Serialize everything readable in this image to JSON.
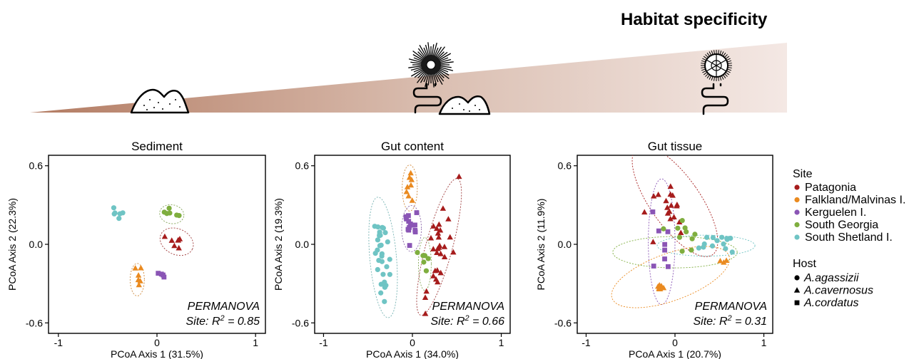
{
  "header": {
    "title": "Habitat specificity"
  },
  "colors": {
    "Patagonia": "#a61c1c",
    "Falkland/Malvinas I.": "#ea8a1f",
    "Kerguelen I.": "#8a55b5",
    "South Georgia": "#7fae3f",
    "South Shetland I.": "#6fc4c4"
  },
  "legend": {
    "site_title": "Site",
    "sites": [
      "Patagonia",
      "Falkland/Malvinas I.",
      "Kerguelen I.",
      "South Georgia",
      "South Shetland I."
    ],
    "host_title": "Host",
    "hosts": [
      {
        "name": "A.agassizii",
        "shape": "circle"
      },
      {
        "name": "A.cavernosus",
        "shape": "triangle"
      },
      {
        "name": "A.cordatus",
        "shape": "square"
      }
    ]
  },
  "icons": [
    "sediment-mound-icon",
    "sea-urchin-icon",
    "gut-icon",
    "urchin-test-icon"
  ],
  "chart_data": [
    {
      "type": "scatter",
      "title": "Sediment",
      "xlabel": "PCoA Axis 1 (31.5%)",
      "ylabel": "PCoA Axis 2 (22.3%)",
      "xlim": [
        -1.1,
        1.1
      ],
      "ylim": [
        -0.68,
        0.68
      ],
      "xticks": [
        -1,
        0,
        1
      ],
      "yticks": [
        0.6,
        0.0,
        -0.6
      ],
      "xtick_labels": [
        "-1",
        "0",
        "1"
      ],
      "ytick_labels": [
        "0.6",
        "0.0",
        "-0.6"
      ],
      "annotation": "PERMANOVA",
      "stat_prefix": "Site: R",
      "stat_sup": "2",
      "stat_suffix": " = 0.85",
      "groups": [
        {
          "site": "South Shetland I.",
          "host": "circle",
          "cx": -0.4,
          "cy": 0.23,
          "sx": 0.03,
          "sy": 0.03,
          "n": 6,
          "rot": 0,
          "ellipse": false
        },
        {
          "site": "South Georgia",
          "host": "circle",
          "cx": 0.15,
          "cy": 0.23,
          "sx": 0.04,
          "sy": 0.02,
          "n": 6,
          "rot": -10,
          "ellipse": true
        },
        {
          "site": "Patagonia",
          "host": "triangle",
          "cx": 0.2,
          "cy": 0.02,
          "sx": 0.06,
          "sy": 0.03,
          "n": 7,
          "rot": -25,
          "ellipse": true
        },
        {
          "site": "Kerguelen I.",
          "host": "square",
          "cx": 0.04,
          "cy": -0.22,
          "sx": 0.02,
          "sy": 0.015,
          "n": 4,
          "rot": 0,
          "ellipse": false
        },
        {
          "site": "Falkland/Malvinas I.",
          "host": "triangle",
          "cx": -0.2,
          "cy": -0.27,
          "sx": 0.02,
          "sy": 0.04,
          "n": 6,
          "rot": 0,
          "ellipse": true
        }
      ]
    },
    {
      "type": "scatter",
      "title": "Gut content",
      "xlabel": "PCoA Axis 1 (34.0%)",
      "ylabel": "PCoA Axis 2 (19.3%)",
      "xlim": [
        -1.1,
        1.1
      ],
      "ylim": [
        -0.68,
        0.68
      ],
      "xticks": [
        -1,
        0,
        1
      ],
      "yticks": [
        0.6,
        0.0,
        -0.6
      ],
      "xtick_labels": [
        "-1",
        "0",
        "1"
      ],
      "ytick_labels": [
        "0.6",
        "0.0",
        "-0.6"
      ],
      "annotation": "PERMANOVA",
      "stat_prefix": "Site: R",
      "stat_sup": "2",
      "stat_suffix": " = 0.66",
      "groups": [
        {
          "site": "Falkland/Malvinas I.",
          "host": "triangle",
          "cx": -0.03,
          "cy": 0.43,
          "sx": 0.025,
          "sy": 0.06,
          "n": 8,
          "rot": 0,
          "ellipse": true
        },
        {
          "site": "Kerguelen I.",
          "host": "square",
          "cx": -0.01,
          "cy": 0.12,
          "sx": 0.035,
          "sy": 0.06,
          "n": 14,
          "rot": 0,
          "ellipse": true
        },
        {
          "site": "South Shetland I.",
          "host": "circle",
          "cx": -0.33,
          "cy": -0.1,
          "sx": 0.05,
          "sy": 0.17,
          "n": 30,
          "rot": 5,
          "ellipse": true
        },
        {
          "site": "South Georgia",
          "host": "circle",
          "cx": 0.14,
          "cy": -0.15,
          "sx": 0.02,
          "sy": 0.07,
          "n": 6,
          "rot": 0,
          "ellipse": true
        },
        {
          "site": "Patagonia",
          "host": "triangle",
          "cx": 0.3,
          "cy": -0.02,
          "sx": 0.05,
          "sy": 0.2,
          "n": 30,
          "rot": -15,
          "ellipse": true
        }
      ]
    },
    {
      "type": "scatter",
      "title": "Gut tissue",
      "xlabel": "PCoA Axis 1 (20.7%)",
      "ylabel": "PCoA Axis 2 (11.9%)",
      "xlim": [
        -1.1,
        1.1
      ],
      "ylim": [
        -0.68,
        0.68
      ],
      "xticks": [
        -1,
        0,
        1
      ],
      "yticks": [
        0.6,
        0.0,
        -0.6
      ],
      "xtick_labels": [
        "-1",
        "0",
        "1"
      ],
      "ytick_labels": [
        "0.6",
        "0.0",
        "-0.6"
      ],
      "annotation": "PERMANOVA",
      "stat_prefix": "Site: R",
      "stat_sup": "2",
      "stat_suffix": " = 0.31",
      "groups": [
        {
          "site": "Patagonia",
          "host": "triangle",
          "cx": -0.05,
          "cy": 0.28,
          "sx": 0.12,
          "sy": 0.12,
          "n": 18,
          "rot": 0,
          "ellipse": false
        },
        {
          "site": "Kerguelen I.",
          "host": "square",
          "cx": -0.15,
          "cy": 0.05,
          "sx": 0.06,
          "sy": 0.12,
          "n": 8,
          "rot": 0,
          "ellipse": false
        },
        {
          "site": "South Georgia",
          "host": "circle",
          "cx": 0.05,
          "cy": 0.06,
          "sx": 0.15,
          "sy": 0.08,
          "n": 10,
          "rot": 0,
          "ellipse": false
        },
        {
          "site": "South Shetland I.",
          "host": "circle",
          "cx": 0.45,
          "cy": 0.0,
          "sx": 0.12,
          "sy": 0.05,
          "n": 14,
          "rot": 0,
          "ellipse": false
        },
        {
          "site": "Falkland/Malvinas I.",
          "host": "triangle",
          "cx": -0.15,
          "cy": -0.33,
          "sx": 0.05,
          "sy": 0.02,
          "n": 7,
          "rot": 0,
          "ellipse": false
        },
        {
          "site": "Falkland/Malvinas I.",
          "host": "triangle",
          "cx": 0.55,
          "cy": -0.15,
          "sx": 0.04,
          "sy": 0.02,
          "n": 3,
          "rot": 0,
          "ellipse": false
        }
      ],
      "ellipses": [
        {
          "site": "Patagonia",
          "cx": 0.0,
          "cy": 0.33,
          "rx": 0.28,
          "ry": 0.5,
          "rot": 35
        },
        {
          "site": "Kerguelen I.",
          "cx": -0.15,
          "cy": 0.02,
          "rx": 0.15,
          "ry": 0.48,
          "rot": 0
        },
        {
          "site": "South Georgia",
          "cx": 0.0,
          "cy": -0.06,
          "rx": 0.7,
          "ry": 0.12,
          "rot": 0
        },
        {
          "site": "South Shetland I.",
          "cx": 0.35,
          "cy": -0.01,
          "rx": 0.55,
          "ry": 0.08,
          "rot": 0
        },
        {
          "site": "Falkland/Malvinas I.",
          "cx": -0.05,
          "cy": -0.25,
          "rx": 0.7,
          "ry": 0.18,
          "rot": 20
        }
      ]
    }
  ]
}
